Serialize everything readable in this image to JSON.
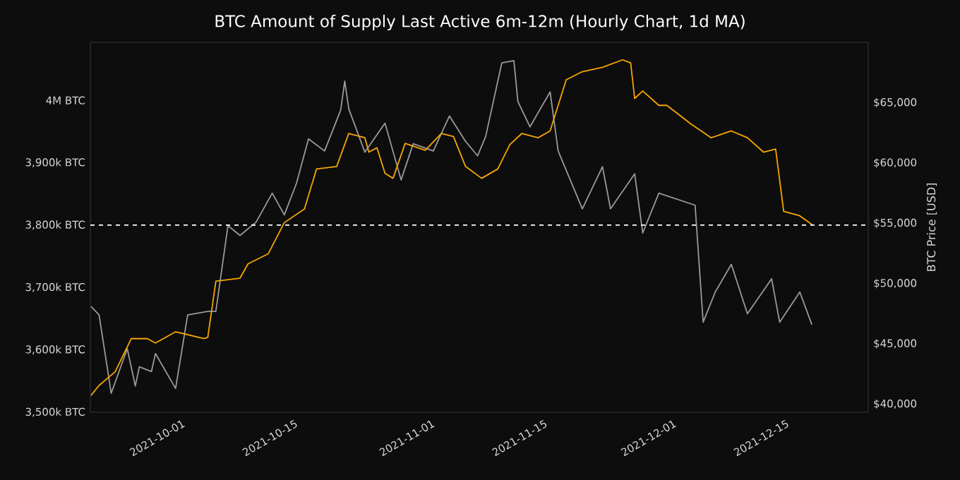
{
  "chart_data": {
    "type": "line",
    "title": "BTC Amount of Supply Last Active 6m-12m (Hourly Chart, 1d MA)",
    "y2label": "BTC Price [USD]",
    "xlim": [
      "2021-09-19T10:00",
      "2021-12-25"
    ],
    "xticks": [
      "2021-10-01",
      "2021-10-15",
      "2021-11-01",
      "2021-11-15",
      "2021-12-01",
      "2021-12-15"
    ],
    "ylim": [
      3500000,
      4093000
    ],
    "yticks": [
      {
        "value": 3500000,
        "label": "3,500k BTC"
      },
      {
        "value": 3600000,
        "label": "3,600k BTC"
      },
      {
        "value": 3700000,
        "label": "3,700k BTC"
      },
      {
        "value": 3800000,
        "label": "3,800k BTC"
      },
      {
        "value": 3900000,
        "label": "3,900k BTC"
      },
      {
        "value": 4000000,
        "label": "4M BTC"
      }
    ],
    "y2lim": [
      39330,
      70010
    ],
    "y2ticks": [
      {
        "value": 40000,
        "label": "$40,000"
      },
      {
        "value": 45000,
        "label": "$45,000"
      },
      {
        "value": 50000,
        "label": "$50,000"
      },
      {
        "value": 55000,
        "label": "$55,000"
      },
      {
        "value": 60000,
        "label": "$60,000"
      },
      {
        "value": 65000,
        "label": "$65,000"
      }
    ],
    "ref_lines": [
      {
        "axis": "y",
        "value": 3800000,
        "color": "#ffffff",
        "line_style": "dashed"
      }
    ],
    "series": [
      {
        "color": "#9a9a9a",
        "axis": "y2",
        "x": [
          "2021-09-19T12:00",
          "2021-09-20T12:00",
          "2021-09-21T12:00",
          "2021-09-22T00:00",
          "2021-09-24T00:00",
          "2021-09-25T00:00",
          "2021-09-25T12:00",
          "2021-09-27T00:00",
          "2021-09-27T12:00",
          "2021-09-30T00:00",
          "2021-10-01T12:00",
          "2021-10-04T00:00",
          "2021-10-05T00:00",
          "2021-10-06T12:00",
          "2021-10-08T00:00",
          "2021-10-10T00:00",
          "2021-10-12T00:00",
          "2021-10-13T12:00",
          "2021-10-15T00:00",
          "2021-10-16T12:00",
          "2021-10-18T12:00",
          "2021-10-20T12:00",
          "2021-10-21T00:00",
          "2021-10-21T12:00",
          "2021-10-23T12:00",
          "2021-10-26T00:00",
          "2021-10-28T00:00",
          "2021-10-29T12:00",
          "2021-11-01T00:00",
          "2021-11-03T00:00",
          "2021-11-05T00:00",
          "2021-11-06T12:00",
          "2021-11-07T12:00",
          "2021-11-09T12:00",
          "2021-11-11T00:00",
          "2021-11-11T12:00",
          "2021-11-13T00:00",
          "2021-11-15T12:00",
          "2021-11-16T12:00",
          "2021-11-19T12:00",
          "2021-11-22T00:00",
          "2021-11-23T00:00",
          "2021-11-26T00:00",
          "2021-11-27T00:00",
          "2021-11-29T00:00",
          "2021-12-03T12:00",
          "2021-12-04T12:00",
          "2021-12-06T00:00",
          "2021-12-08T00:00",
          "2021-12-10T00:00",
          "2021-12-13T00:00",
          "2021-12-14T00:00",
          "2021-12-16T12:00",
          "2021-12-18T00:00"
        ],
        "values": [
          48100,
          47400,
          43100,
          40900,
          44600,
          41500,
          43100,
          42700,
          44200,
          41300,
          47400,
          47700,
          47700,
          54800,
          54000,
          55100,
          57500,
          55700,
          58300,
          62000,
          61000,
          64400,
          66800,
          64500,
          60900,
          63300,
          58600,
          61600,
          61000,
          63900,
          61800,
          60600,
          62200,
          68300,
          68500,
          65100,
          63000,
          65900,
          61000,
          56200,
          59700,
          56200,
          59100,
          54200,
          57500,
          56500,
          46800,
          49300,
          51600,
          47500,
          50400,
          46800,
          49300,
          46600
        ]
      },
      {
        "color": "#f7a600",
        "x": [
          "2021-09-19T12:00",
          "2021-09-20T12:00",
          "2021-09-22T12:00",
          "2021-09-24T12:00",
          "2021-09-26T12:00",
          "2021-09-27T12:00",
          "2021-09-30T00:00",
          "2021-10-03T12:00",
          "2021-10-04T00:00",
          "2021-10-05T00:00",
          "2021-10-08T00:00",
          "2021-10-09T00:00",
          "2021-10-11T12:00",
          "2021-10-13T12:00",
          "2021-10-16T00:00",
          "2021-10-17T12:00",
          "2021-10-20T00:00",
          "2021-10-21T12:00",
          "2021-10-23T12:00",
          "2021-10-24T00:00",
          "2021-10-25T00:00",
          "2021-10-26T00:00",
          "2021-10-27T00:00",
          "2021-10-28T12:00",
          "2021-10-31T00:00",
          "2021-11-02T00:00",
          "2021-11-03T12:00",
          "2021-11-05T00:00",
          "2021-11-07T00:00",
          "2021-11-09T00:00",
          "2021-11-10T12:00",
          "2021-11-12T00:00",
          "2021-11-14T00:00",
          "2021-11-15T12:00",
          "2021-11-17T12:00",
          "2021-11-19T12:00",
          "2021-11-22T00:00",
          "2021-11-24T12:00",
          "2021-11-25T12:00",
          "2021-11-26T00:00",
          "2021-11-27T00:00",
          "2021-11-29T00:00",
          "2021-11-30T00:00",
          "2021-12-03T00:00",
          "2021-12-05T12:00",
          "2021-12-08T00:00",
          "2021-12-10T00:00",
          "2021-12-12T00:00",
          "2021-12-13T12:00",
          "2021-12-14T12:00",
          "2021-12-16T12:00",
          "2021-12-18T00:00"
        ],
        "values": [
          3527000,
          3543000,
          3565000,
          3618000,
          3618000,
          3611000,
          3629000,
          3618000,
          3620000,
          3710000,
          3715000,
          3738000,
          3754000,
          3804000,
          3826000,
          3890000,
          3894000,
          3947000,
          3940000,
          3917000,
          3924000,
          3883000,
          3875000,
          3931000,
          3920000,
          3947000,
          3942000,
          3894000,
          3875000,
          3890000,
          3929000,
          3947000,
          3940000,
          3951000,
          4033000,
          4046000,
          4053000,
          4065000,
          4060000,
          4003000,
          4015000,
          3992000,
          3992000,
          3962000,
          3940000,
          3951000,
          3940000,
          3917000,
          3922000,
          3822000,
          3815000,
          3801000
        ]
      }
    ]
  }
}
